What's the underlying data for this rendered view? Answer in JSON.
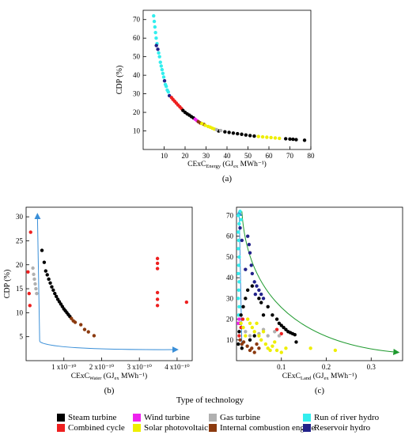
{
  "chart_data": [
    {
      "type": "scatter",
      "panel_label": "(a)",
      "xlabel": "CExC",
      "xlabel_sub": "Energy",
      "xlabel_rest": " (GJ",
      "xlabel_sub2": "ex",
      "xlabel_end": " MWh⁻¹)",
      "ylabel": "CDP (%)",
      "xlim": [
        0,
        80
      ],
      "ylim": [
        0,
        75
      ],
      "xticks": [
        "10",
        "20",
        "30",
        "40",
        "50",
        "60",
        "70",
        "80"
      ],
      "yticks": [
        "10",
        "20",
        "30",
        "40",
        "50",
        "60",
        "70"
      ],
      "series": [
        {
          "tech": "run_of_river_hydro",
          "color": "#33eeee",
          "points": [
            [
              5,
              72
            ],
            [
              5.3,
              69
            ],
            [
              5.6,
              66
            ],
            [
              5.9,
              63
            ],
            [
              6.2,
              60
            ],
            [
              6.6,
              57
            ],
            [
              7.4,
              52
            ],
            [
              7.8,
              50
            ],
            [
              8.2,
              47
            ],
            [
              8.6,
              45
            ],
            [
              9,
              43
            ],
            [
              9.4,
              41
            ],
            [
              9.8,
              39
            ],
            [
              10.6,
              35
            ],
            [
              11,
              34
            ],
            [
              11.5,
              32
            ],
            [
              12,
              31
            ]
          ]
        },
        {
          "tech": "reservoir_hydro",
          "color": "#22228a",
          "points": [
            [
              6.3,
              56
            ],
            [
              7,
              54
            ],
            [
              10.2,
              37
            ],
            [
              12.5,
              29
            ]
          ]
        },
        {
          "tech": "combined_cycle",
          "color": "#ee2020",
          "points": [
            [
              13.5,
              28
            ],
            [
              14.2,
              27
            ],
            [
              15,
              26
            ],
            [
              15.8,
              25
            ],
            [
              16.6,
              24
            ],
            [
              17.5,
              23
            ],
            [
              18.3,
              22
            ]
          ]
        },
        {
          "tech": "steam_turbine",
          "color": "#000000",
          "points": [
            [
              19,
              21
            ],
            [
              20,
              20
            ],
            [
              21,
              19.2
            ],
            [
              22,
              18.5
            ],
            [
              23,
              17.7
            ],
            [
              24,
              17
            ],
            [
              36,
              10
            ],
            [
              39,
              9.5
            ],
            [
              41,
              9.2
            ],
            [
              43,
              8.8
            ],
            [
              45,
              8.5
            ],
            [
              47,
              8.2
            ],
            [
              49,
              7.8
            ],
            [
              51,
              7.5
            ],
            [
              53,
              7.2
            ],
            [
              68,
              5.8
            ],
            [
              70,
              5.6
            ],
            [
              71.5,
              5.5
            ],
            [
              73,
              5.3
            ],
            [
              77,
              5
            ]
          ]
        },
        {
          "tech": "wind_turbine",
          "color": "#ee22ee",
          "points": [
            [
              24.8,
              16.3
            ],
            [
              25.6,
              15.6
            ]
          ]
        },
        {
          "tech": "internal_combustion_engine",
          "color": "#8b3a0f",
          "points": [
            [
              26.3,
              15
            ],
            [
              27.2,
              14.3
            ],
            [
              29,
              13.5
            ]
          ]
        },
        {
          "tech": "solar_photovoltaic",
          "color": "#eeee00",
          "points": [
            [
              28,
              14
            ],
            [
              29.6,
              13
            ],
            [
              31,
              12.4
            ],
            [
              32,
              12
            ],
            [
              33,
              11.5
            ],
            [
              34,
              11
            ],
            [
              55,
              7
            ],
            [
              57,
              6.8
            ],
            [
              59,
              6.6
            ],
            [
              61,
              6.4
            ],
            [
              63,
              6.2
            ],
            [
              65,
              6
            ]
          ]
        },
        {
          "tech": "gas_turbine",
          "color": "#b0b0b0",
          "points": [
            [
              35,
              10.7
            ],
            [
              37,
              10.2
            ]
          ]
        }
      ]
    },
    {
      "type": "scatter",
      "panel_label": "(b)",
      "xlabel": "CExC",
      "xlabel_sub": "Water",
      "xlabel_rest": " (GJ",
      "xlabel_sub2": "ex",
      "xlabel_end": " MWh⁻¹)",
      "ylabel": "CDP (%)",
      "xlim": [
        0,
        4.4
      ],
      "ylim": [
        0,
        32
      ],
      "xticks": [
        "1 x10⁻¹⁰",
        "2 x10⁻¹⁰",
        "3 x10⁻¹⁰",
        "4 x10⁻¹⁰"
      ],
      "yticks": [
        "5",
        "10",
        "15",
        "20",
        "25",
        "30"
      ],
      "series": [
        {
          "tech": "combined_cycle",
          "color": "#ee2020",
          "points": [
            [
              0.05,
              18.5
            ],
            [
              0.08,
              14
            ],
            [
              0.1,
              11.5
            ],
            [
              0.12,
              26.8
            ],
            [
              3.48,
              21.3
            ],
            [
              3.48,
              20.3
            ],
            [
              3.48,
              19.2
            ],
            [
              3.48,
              14.2
            ],
            [
              3.48,
              12.8
            ],
            [
              3.48,
              11.5
            ],
            [
              4.25,
              12.2
            ]
          ]
        },
        {
          "tech": "gas_turbine",
          "color": "#b0b0b0",
          "points": [
            [
              0.18,
              19.3
            ],
            [
              0.2,
              18
            ],
            [
              0.22,
              17
            ],
            [
              0.24,
              16
            ],
            [
              0.26,
              15
            ],
            [
              0.28,
              14
            ]
          ]
        },
        {
          "tech": "steam_turbine",
          "color": "#000000",
          "points": [
            [
              0.42,
              23
            ],
            [
              0.48,
              20.5
            ],
            [
              0.52,
              18.7
            ],
            [
              0.56,
              17.9
            ],
            [
              0.6,
              17
            ],
            [
              0.64,
              16.2
            ],
            [
              0.68,
              15.4
            ],
            [
              0.72,
              14.7
            ],
            [
              0.76,
              14
            ],
            [
              0.8,
              13.4
            ],
            [
              0.84,
              12.8
            ],
            [
              0.88,
              12.3
            ],
            [
              0.92,
              11.8
            ],
            [
              0.96,
              11.3
            ],
            [
              1,
              10.8
            ],
            [
              1.04,
              10.4
            ],
            [
              1.08,
              10
            ],
            [
              1.12,
              9.6
            ],
            [
              1.16,
              9.2
            ]
          ]
        },
        {
          "tech": "internal_combustion_engine",
          "color": "#8b3a0f",
          "points": [
            [
              1.2,
              8.8
            ],
            [
              1.25,
              8.3
            ],
            [
              1.3,
              8
            ],
            [
              1.45,
              7.5
            ],
            [
              1.55,
              6.5
            ],
            [
              1.65,
              6
            ],
            [
              1.8,
              5.2
            ]
          ]
        }
      ],
      "arrow_color": "#3a8fd8"
    },
    {
      "type": "scatter",
      "panel_label": "(c)",
      "xlabel": "CExC",
      "xlabel_sub": "Land",
      "xlabel_rest": " (GJ",
      "xlabel_sub2": "ex",
      "xlabel_end": " MWh⁻¹)",
      "xlim": [
        0,
        0.37
      ],
      "ylim": [
        0,
        74
      ],
      "xticks": [
        "0.1",
        "0.2",
        "0.3"
      ],
      "yticks": [
        "10",
        "20",
        "30",
        "40",
        "50",
        "60",
        "70"
      ],
      "series": [
        {
          "tech": "run_of_river_hydro",
          "color": "#33eeee",
          "points": [
            [
              0.004,
              70
            ],
            [
              0.006,
              66
            ],
            [
              0.004,
              62
            ],
            [
              0.005,
              58
            ],
            [
              0.004,
              54
            ],
            [
              0.006,
              50
            ],
            [
              0.005,
              46
            ],
            [
              0.004,
              42
            ],
            [
              0.006,
              38
            ],
            [
              0.005,
              34
            ],
            [
              0.004,
              30
            ],
            [
              0.006,
              26
            ],
            [
              0.005,
              22
            ],
            [
              0.008,
              72
            ],
            [
              0.01,
              68
            ]
          ]
        },
        {
          "tech": "reservoir_hydro",
          "color": "#22228a",
          "points": [
            [
              0.008,
              64
            ],
            [
              0.012,
              58
            ],
            [
              0.02,
              44
            ],
            [
              0.025,
              60
            ],
            [
              0.028,
              56
            ],
            [
              0.03,
              52
            ],
            [
              0.033,
              46
            ],
            [
              0.035,
              42
            ],
            [
              0.04,
              38
            ],
            [
              0.045,
              36
            ],
            [
              0.05,
              34
            ],
            [
              0.055,
              32
            ],
            [
              0.042,
              32
            ],
            [
              0.06,
              30
            ]
          ]
        },
        {
          "tech": "steam_turbine",
          "color": "#000000",
          "points": [
            [
              0.004,
              8
            ],
            [
              0.006,
              14
            ],
            [
              0.008,
              18
            ],
            [
              0.01,
              22
            ],
            [
              0.012,
              6
            ],
            [
              0.015,
              26
            ],
            [
              0.02,
              30
            ],
            [
              0.025,
              34
            ],
            [
              0.03,
              10
            ],
            [
              0.035,
              36
            ],
            [
              0.04,
              12
            ],
            [
              0.05,
              30
            ],
            [
              0.055,
              28
            ],
            [
              0.06,
              22
            ],
            [
              0.07,
              26
            ],
            [
              0.08,
              22
            ],
            [
              0.09,
              20
            ],
            [
              0.095,
              18
            ],
            [
              0.1,
              17
            ],
            [
              0.105,
              16
            ],
            [
              0.11,
              15
            ],
            [
              0.115,
              14
            ],
            [
              0.12,
              13.5
            ],
            [
              0.125,
              13
            ],
            [
              0.13,
              12.5
            ],
            [
              0.133,
              9
            ]
          ]
        },
        {
          "tech": "combined_cycle",
          "color": "#ee2020",
          "points": [
            [
              0.006,
              12
            ],
            [
              0.01,
              16
            ],
            [
              0.014,
              20
            ],
            [
              0.09,
              15
            ],
            [
              0.1,
              13
            ]
          ]
        },
        {
          "tech": "wind_turbine",
          "color": "#ee22ee",
          "points": [
            [
              0.004,
              18
            ],
            [
              0.006,
              20
            ]
          ]
        },
        {
          "tech": "gas_turbine",
          "color": "#b0b0b0",
          "points": [
            [
              0.02,
              14
            ],
            [
              0.03,
              12
            ],
            [
              0.05,
              13
            ],
            [
              0.06,
              15
            ],
            [
              0.07,
              12
            ],
            [
              0.085,
              14
            ],
            [
              0.095,
              12
            ]
          ]
        },
        {
          "tech": "internal_combustion_engine",
          "color": "#8b3a0f",
          "points": [
            [
              0.008,
              10
            ],
            [
              0.012,
              8
            ],
            [
              0.016,
              9
            ],
            [
              0.024,
              7
            ],
            [
              0.03,
              5
            ],
            [
              0.034,
              6
            ],
            [
              0.04,
              4
            ],
            [
              0.045,
              8
            ],
            [
              0.05,
              6
            ]
          ]
        },
        {
          "tech": "solar_photovoltaic",
          "color": "#eeee00",
          "points": [
            [
              0.01,
              18
            ],
            [
              0.015,
              16
            ],
            [
              0.02,
              12
            ],
            [
              0.025,
              20
            ],
            [
              0.03,
              18
            ],
            [
              0.035,
              16
            ],
            [
              0.04,
              14
            ],
            [
              0.045,
              18
            ],
            [
              0.05,
              12
            ],
            [
              0.055,
              10
            ],
            [
              0.06,
              14
            ],
            [
              0.065,
              8
            ],
            [
              0.07,
              6
            ],
            [
              0.075,
              5
            ],
            [
              0.08,
              7
            ],
            [
              0.085,
              9
            ],
            [
              0.09,
              5
            ],
            [
              0.1,
              4
            ],
            [
              0.11,
              6
            ],
            [
              0.165,
              6
            ],
            [
              0.22,
              5
            ]
          ]
        }
      ],
      "arrow_color": "#3a8fd8",
      "arrow2_color": "#1f9a2f"
    }
  ],
  "legend": {
    "title": "Type of technology",
    "items": [
      {
        "label": "Steam turbine",
        "color": "#000000"
      },
      {
        "label": "Wind turbine",
        "color": "#ee22ee"
      },
      {
        "label": "Gas turbine",
        "color": "#b0b0b0"
      },
      {
        "label": "Run of river hydro",
        "color": "#33eeee"
      },
      {
        "label": "Combined cycle",
        "color": "#ee2020"
      },
      {
        "label": "Solar photovoltaic",
        "color": "#eeee00"
      },
      {
        "label": "Internal combustion engine",
        "color": "#8b3a0f"
      },
      {
        "label": "Reservoir hydro",
        "color": "#22228a"
      }
    ]
  }
}
